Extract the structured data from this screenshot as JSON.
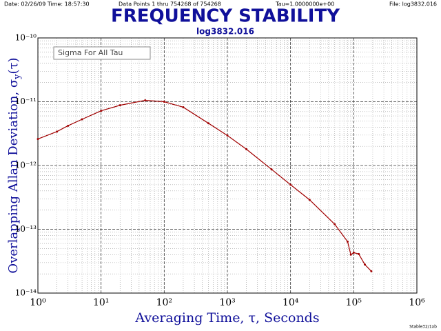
{
  "header": {
    "date": "Date: 02/26/09  Time: 18:57:30",
    "points": "Data Points 1 thru 754268 of 754268",
    "tau": "Tau=1.0000000e+00",
    "file": "File: log3832.016"
  },
  "footer": "Stable32/1xb",
  "chart_data": {
    "type": "line",
    "title": "FREQUENCY STABILITY",
    "subtitle": "log3832.016",
    "legend_text": "Sigma For All Tau",
    "xlabel": "Averaging Time, τ, Seconds",
    "ylabel": {
      "text": "Overlapping  Allan Deviation, σ",
      "sub": "y",
      "tail": "(τ)"
    },
    "xscale": "log",
    "yscale": "log",
    "grid": true,
    "xlim": [
      1,
      1000000
    ],
    "ylim": [
      1e-14,
      1e-10
    ],
    "xticks": [
      {
        "value": 1,
        "label": "10⁰"
      },
      {
        "value": 10,
        "label": "10¹"
      },
      {
        "value": 100,
        "label": "10²"
      },
      {
        "value": 1000,
        "label": "10³"
      },
      {
        "value": 10000,
        "label": "10⁴"
      },
      {
        "value": 100000,
        "label": "10⁵"
      },
      {
        "value": 1000000,
        "label": "10⁶"
      }
    ],
    "yticks": [
      {
        "value": 1e-14,
        "label": "10⁻¹⁴"
      },
      {
        "value": 1e-13,
        "label": "10⁻¹³"
      },
      {
        "value": 1e-12,
        "label": "10⁻¹²"
      },
      {
        "value": 1e-11,
        "label": "10⁻¹¹"
      },
      {
        "value": 1e-10,
        "label": "10⁻¹⁰"
      }
    ],
    "xminorticks": [
      2,
      3,
      4,
      5,
      6,
      7,
      8,
      9,
      20,
      30,
      40,
      50,
      60,
      70,
      80,
      90,
      200,
      300,
      400,
      500,
      600,
      700,
      800,
      900,
      2000,
      3000,
      4000,
      5000,
      6000,
      7000,
      8000,
      9000,
      20000,
      30000,
      40000,
      50000,
      60000,
      70000,
      80000,
      90000,
      200000,
      300000,
      400000,
      500000,
      600000,
      700000,
      800000,
      900000
    ],
    "yminorticks": [
      2e-14,
      3e-14,
      4e-14,
      5e-14,
      6e-14,
      7e-14,
      8e-14,
      9e-14,
      2e-13,
      3e-13,
      4e-13,
      5e-13,
      6e-13,
      7e-13,
      8e-13,
      9e-13,
      2e-12,
      3e-12,
      4e-12,
      5e-12,
      6e-12,
      7e-12,
      8e-12,
      9e-12,
      2e-11,
      3e-11,
      4e-11,
      5e-11,
      6e-11,
      7e-11,
      8e-11,
      9e-11
    ],
    "x": [
      1,
      2,
      3,
      5,
      10,
      20,
      50,
      100,
      200,
      500,
      1000,
      2000,
      5000,
      10000,
      20000,
      50000,
      80000,
      90000,
      100000,
      120000,
      150000,
      190000
    ],
    "series": [
      {
        "name": "Sigma For All Tau",
        "color": "#a00000",
        "values": [
          2.6e-12,
          3.4e-12,
          4.2e-12,
          5.3e-12,
          7.2e-12,
          8.8e-12,
          1.05e-11,
          1e-11,
          8.2e-12,
          4.6e-12,
          2.95e-12,
          1.8e-12,
          8.7e-13,
          5e-13,
          2.9e-13,
          1.2e-13,
          6.4e-14,
          4e-14,
          4.3e-14,
          4.1e-14,
          2.8e-14,
          2.2e-14
        ]
      }
    ]
  }
}
